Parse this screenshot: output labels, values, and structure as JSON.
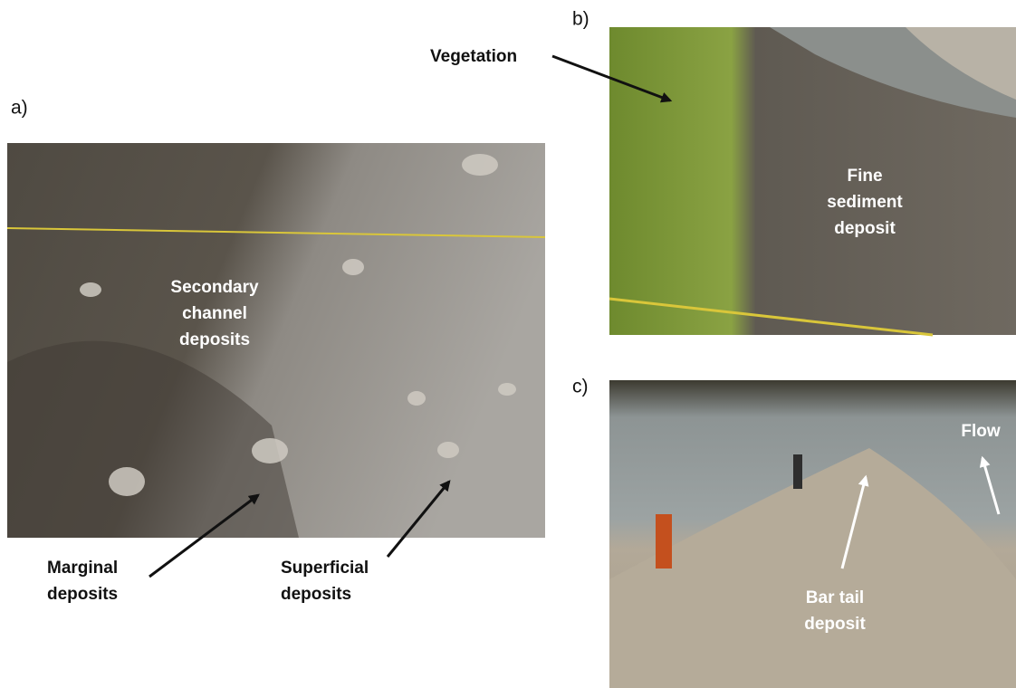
{
  "panels": [
    {
      "label": "a)",
      "annotations": [
        {
          "lines": [
            "Secondary",
            "channel",
            "deposits"
          ]
        },
        {
          "lines": [
            "Marginal",
            "deposits"
          ]
        },
        {
          "lines": [
            "Superficial",
            "deposits"
          ]
        }
      ]
    },
    {
      "label": "b)",
      "annotations": [
        {
          "lines": [
            "Vegetation"
          ]
        },
        {
          "lines": [
            "Fine",
            "sediment",
            "deposit"
          ]
        }
      ]
    },
    {
      "label": "c)",
      "annotations": [
        {
          "lines": [
            "Flow"
          ]
        },
        {
          "lines": [
            "Bar tail",
            "deposit"
          ]
        }
      ]
    }
  ]
}
